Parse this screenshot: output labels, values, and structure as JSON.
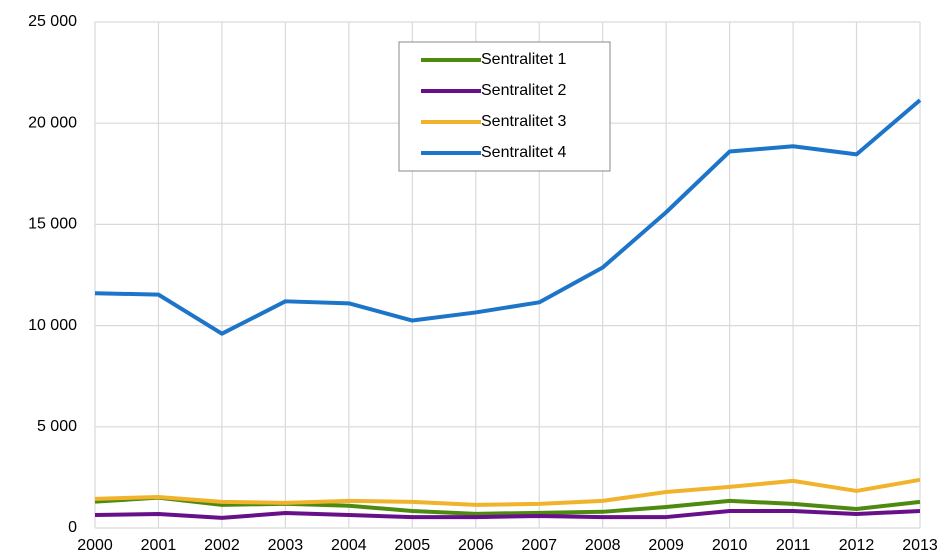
{
  "chart_data": {
    "type": "line",
    "categories": [
      "2000",
      "2001",
      "2002",
      "2003",
      "2004",
      "2005",
      "2006",
      "2007",
      "2008",
      "2009",
      "2010",
      "2011",
      "2012",
      "2013"
    ],
    "series": [
      {
        "name": "Sentralitet 1",
        "color": "#4d8a0f",
        "values": [
          1300,
          1500,
          1140,
          1200,
          1100,
          840,
          700,
          750,
          800,
          1040,
          1340,
          1190,
          940,
          1290
        ]
      },
      {
        "name": "Sentralitet 2",
        "color": "#68108a",
        "values": [
          640,
          690,
          500,
          740,
          640,
          540,
          540,
          590,
          540,
          540,
          840,
          840,
          690,
          840
        ]
      },
      {
        "name": "Sentralitet 3",
        "color": "#f0b32b",
        "values": [
          1440,
          1530,
          1290,
          1240,
          1340,
          1290,
          1140,
          1190,
          1340,
          1780,
          2030,
          2330,
          1830,
          2380
        ]
      },
      {
        "name": "Sentralitet 4",
        "color": "#1c75c9",
        "values": [
          11600,
          11530,
          9600,
          11200,
          11100,
          10250,
          10650,
          11150,
          12870,
          15600,
          18600,
          18860,
          18460,
          21140
        ]
      }
    ],
    "ylim": [
      0,
      25000
    ],
    "yticks": [
      0,
      {
        "value": 5000,
        "label": "5 000"
      },
      {
        "value": 10000,
        "label": "10 000"
      },
      {
        "value": 15000,
        "label": "15 000"
      },
      {
        "value": 20000,
        "label": "20 000"
      },
      {
        "value": 25000,
        "label": "25 000"
      }
    ],
    "grid": true,
    "legend": "upper center"
  }
}
